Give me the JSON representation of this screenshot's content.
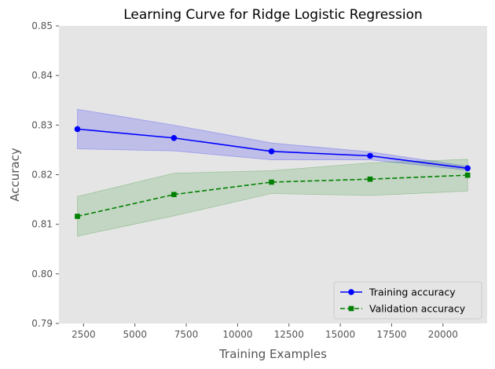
{
  "chart_data": {
    "type": "line",
    "title": "Learning Curve for Ridge Logistic Regression",
    "xlabel": "Training Examples",
    "ylabel": "Accuracy",
    "xlim": [
      1300,
      22150
    ],
    "ylim": [
      0.79,
      0.85
    ],
    "x_ticks": [
      2500,
      5000,
      7500,
      10000,
      12500,
      15000,
      17500,
      20000
    ],
    "x_tick_labels": [
      "2500",
      "5000",
      "7500",
      "10000",
      "12500",
      "15000",
      "17500",
      "20000"
    ],
    "y_ticks": [
      0.79,
      0.8,
      0.81,
      0.82,
      0.83,
      0.84,
      0.85
    ],
    "y_tick_labels": [
      "0.79",
      "0.80",
      "0.81",
      "0.82",
      "0.83",
      "0.84",
      "0.85"
    ],
    "grid": false,
    "legend_position": "lower-right",
    "background": "#e5e5e5",
    "x": [
      2200,
      6900,
      11650,
      16450,
      21200
    ],
    "series": [
      {
        "name": "Training accuracy",
        "color": "#0000ff",
        "linestyle": "solid",
        "marker": "circle",
        "values": [
          0.8292,
          0.8274,
          0.8247,
          0.8238,
          0.8213
        ],
        "band_upper": [
          0.8332,
          0.83,
          0.8264,
          0.8246,
          0.8217
        ],
        "band_lower": [
          0.8252,
          0.8248,
          0.823,
          0.823,
          0.8209
        ],
        "band_color": "#0000ff"
      },
      {
        "name": "Validation accuracy",
        "color": "#008000",
        "linestyle": "dashed",
        "marker": "square",
        "values": [
          0.8116,
          0.816,
          0.8185,
          0.8191,
          0.8199
        ],
        "band_upper": [
          0.8156,
          0.8203,
          0.8208,
          0.8224,
          0.8231
        ],
        "band_lower": [
          0.8076,
          0.8117,
          0.8162,
          0.8158,
          0.8167
        ],
        "band_color": "#008000"
      }
    ]
  }
}
